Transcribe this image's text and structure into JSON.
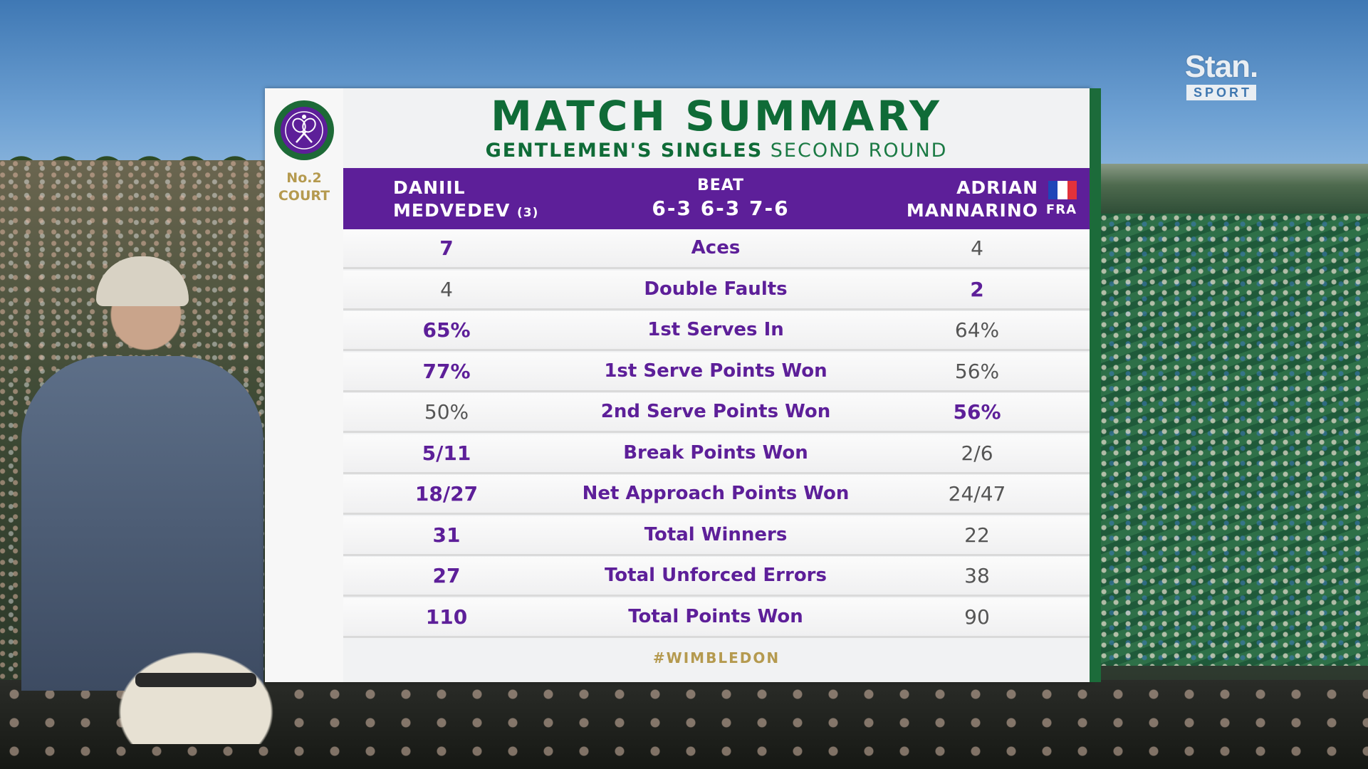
{
  "broadcaster": {
    "name": "Stan.",
    "sub": "SPORT"
  },
  "court": {
    "line1": "No.2",
    "line2": "COURT"
  },
  "title": "MATCH SUMMARY",
  "subtitle": {
    "event": "GENTLEMEN'S SINGLES",
    "round": "SECOND ROUND"
  },
  "player1": {
    "first": "DANIIL",
    "last": "MEDVEDEV",
    "seed": "(3)"
  },
  "result": {
    "verb": "BEAT",
    "score": "6-3 6-3 7-6"
  },
  "player2": {
    "first": "ADRIAN",
    "last": "MANNARINO",
    "nation": "FRA"
  },
  "colors": {
    "purple": "#5d1f99",
    "green": "#0f6b37",
    "gold": "#b59a4f"
  },
  "icons": {
    "crest": "wimbledon-crest-icon",
    "flag": "france-flag-icon"
  },
  "stats": [
    {
      "p1": "7",
      "label": "Aces",
      "p2": "4",
      "leader": "p1"
    },
    {
      "p1": "4",
      "label": "Double Faults",
      "p2": "2",
      "leader": "p2"
    },
    {
      "p1": "65%",
      "label": "1st Serves In",
      "p2": "64%",
      "leader": "p1"
    },
    {
      "p1": "77%",
      "label": "1st Serve Points Won",
      "p2": "56%",
      "leader": "p1"
    },
    {
      "p1": "50%",
      "label": "2nd Serve Points Won",
      "p2": "56%",
      "leader": "p2"
    },
    {
      "p1": "5/11",
      "label": "Break Points Won",
      "p2": "2/6",
      "leader": "p1"
    },
    {
      "p1": "18/27",
      "label": "Net Approach Points Won",
      "p2": "24/47",
      "leader": "p1"
    },
    {
      "p1": "31",
      "label": "Total Winners",
      "p2": "22",
      "leader": "p1"
    },
    {
      "p1": "27",
      "label": "Total Unforced Errors",
      "p2": "38",
      "leader": "p1"
    },
    {
      "p1": "110",
      "label": "Total Points Won",
      "p2": "90",
      "leader": "p1"
    }
  ],
  "hashtag": "#WIMBLEDON"
}
